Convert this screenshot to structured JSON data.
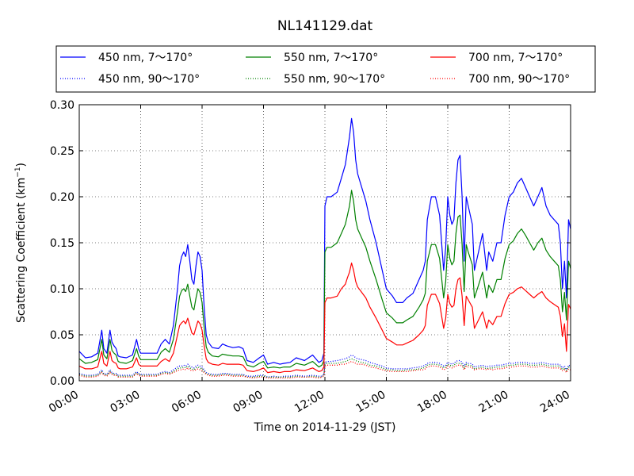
{
  "chart_data": {
    "type": "line",
    "title": "NL141129.dat",
    "xlabel": "Time on 2014-11-29 (JST)",
    "ylabel": "Scattering Coefficient (km",
    "ylabel_sup": "−1",
    "ylabel_tail": ")",
    "xlim": [
      0,
      24
    ],
    "ylim": [
      0,
      0.3
    ],
    "x_ticks": [
      0,
      3,
      6,
      9,
      12,
      15,
      18,
      21,
      24
    ],
    "x_tick_labels": [
      "00:00",
      "03:00",
      "06:00",
      "09:00",
      "12:00",
      "15:00",
      "18:00",
      "21:00",
      "24:00"
    ],
    "y_ticks": [
      0,
      0.05,
      0.1,
      0.15,
      0.2,
      0.25,
      0.3
    ],
    "y_tick_labels": [
      "0.00",
      "0.05",
      "0.10",
      "0.15",
      "0.20",
      "0.25",
      "0.30"
    ],
    "grid": true,
    "legend_position": "top",
    "x_hours": [
      0,
      0.3,
      0.6,
      0.9,
      1.1,
      1.2,
      1.35,
      1.5,
      1.6,
      1.7,
      1.8,
      1.9,
      2.0,
      2.3,
      2.6,
      2.8,
      2.9,
      3.0,
      3.2,
      3.5,
      3.8,
      4.0,
      4.2,
      4.4,
      4.6,
      4.8,
      4.9,
      5.0,
      5.1,
      5.2,
      5.3,
      5.4,
      5.5,
      5.6,
      5.7,
      5.8,
      5.9,
      6.0,
      6.1,
      6.2,
      6.3,
      6.5,
      6.8,
      7.0,
      7.2,
      7.5,
      7.8,
      8.0,
      8.2,
      8.5,
      8.8,
      9.0,
      9.2,
      9.5,
      9.8,
      10.0,
      10.3,
      10.6,
      11.0,
      11.4,
      11.7,
      11.85,
      11.95,
      12.0,
      12.1,
      12.3,
      12.6,
      12.8,
      13.0,
      13.1,
      13.2,
      13.3,
      13.4,
      13.5,
      13.6,
      13.8,
      14.0,
      14.2,
      14.5,
      14.8,
      15.0,
      15.3,
      15.5,
      15.8,
      16.0,
      16.3,
      16.6,
      16.8,
      16.9,
      17.0,
      17.2,
      17.4,
      17.6,
      17.8,
      17.9,
      18.0,
      18.1,
      18.2,
      18.3,
      18.4,
      18.5,
      18.6,
      18.7,
      18.8,
      18.9,
      19.0,
      19.1,
      19.2,
      19.3,
      19.5,
      19.7,
      19.9,
      20.0,
      20.2,
      20.4,
      20.6,
      20.8,
      21.0,
      21.2,
      21.4,
      21.6,
      21.8,
      22.0,
      22.2,
      22.4,
      22.6,
      22.8,
      23.0,
      23.2,
      23.4,
      23.5,
      23.6,
      23.7,
      23.8,
      23.9,
      24.0
    ],
    "series": [
      {
        "name": "450 nm, 7～170°",
        "color": "#0000ff",
        "style": "solid",
        "values": [
          0.032,
          0.025,
          0.026,
          0.03,
          0.055,
          0.035,
          0.03,
          0.055,
          0.042,
          0.038,
          0.035,
          0.027,
          0.026,
          0.025,
          0.028,
          0.045,
          0.035,
          0.03,
          0.03,
          0.03,
          0.03,
          0.04,
          0.045,
          0.04,
          0.06,
          0.1,
          0.125,
          0.135,
          0.14,
          0.135,
          0.148,
          0.13,
          0.11,
          0.105,
          0.125,
          0.14,
          0.135,
          0.12,
          0.08,
          0.05,
          0.042,
          0.036,
          0.035,
          0.04,
          0.038,
          0.036,
          0.037,
          0.035,
          0.022,
          0.02,
          0.025,
          0.028,
          0.018,
          0.02,
          0.018,
          0.019,
          0.02,
          0.025,
          0.022,
          0.028,
          0.02,
          0.022,
          0.03,
          0.19,
          0.2,
          0.2,
          0.205,
          0.22,
          0.235,
          0.25,
          0.265,
          0.285,
          0.27,
          0.24,
          0.225,
          0.21,
          0.195,
          0.175,
          0.15,
          0.12,
          0.1,
          0.092,
          0.085,
          0.085,
          0.09,
          0.095,
          0.11,
          0.12,
          0.13,
          0.175,
          0.2,
          0.2,
          0.18,
          0.12,
          0.145,
          0.2,
          0.18,
          0.17,
          0.175,
          0.215,
          0.24,
          0.245,
          0.2,
          0.13,
          0.2,
          0.19,
          0.18,
          0.17,
          0.12,
          0.14,
          0.16,
          0.12,
          0.14,
          0.13,
          0.15,
          0.15,
          0.18,
          0.2,
          0.205,
          0.215,
          0.22,
          0.21,
          0.2,
          0.19,
          0.2,
          0.21,
          0.19,
          0.18,
          0.175,
          0.17,
          0.15,
          0.1,
          0.13,
          0.09,
          0.175,
          0.165
        ]
      },
      {
        "name": "550 nm, 7～170°",
        "color": "#008000",
        "style": "solid",
        "values": [
          0.024,
          0.019,
          0.02,
          0.023,
          0.045,
          0.028,
          0.024,
          0.045,
          0.033,
          0.03,
          0.028,
          0.021,
          0.02,
          0.019,
          0.022,
          0.035,
          0.027,
          0.023,
          0.023,
          0.023,
          0.023,
          0.031,
          0.035,
          0.031,
          0.045,
          0.075,
          0.092,
          0.098,
          0.1,
          0.097,
          0.105,
          0.092,
          0.08,
          0.077,
          0.09,
          0.1,
          0.096,
          0.085,
          0.058,
          0.037,
          0.031,
          0.027,
          0.026,
          0.029,
          0.028,
          0.027,
          0.027,
          0.026,
          0.017,
          0.015,
          0.019,
          0.021,
          0.014,
          0.015,
          0.014,
          0.015,
          0.015,
          0.019,
          0.017,
          0.021,
          0.015,
          0.017,
          0.022,
          0.14,
          0.145,
          0.145,
          0.15,
          0.16,
          0.17,
          0.18,
          0.19,
          0.207,
          0.195,
          0.175,
          0.165,
          0.155,
          0.145,
          0.13,
          0.11,
          0.088,
          0.074,
          0.068,
          0.063,
          0.063,
          0.066,
          0.07,
          0.08,
          0.088,
          0.095,
          0.13,
          0.148,
          0.148,
          0.133,
          0.09,
          0.108,
          0.148,
          0.133,
          0.126,
          0.13,
          0.16,
          0.178,
          0.18,
          0.148,
          0.097,
          0.148,
          0.14,
          0.133,
          0.126,
          0.09,
          0.104,
          0.118,
          0.09,
          0.104,
          0.096,
          0.11,
          0.11,
          0.133,
          0.148,
          0.152,
          0.16,
          0.165,
          0.158,
          0.15,
          0.142,
          0.15,
          0.155,
          0.142,
          0.135,
          0.13,
          0.125,
          0.11,
          0.075,
          0.096,
          0.066,
          0.13,
          0.122
        ]
      },
      {
        "name": "700 nm, 7～170°",
        "color": "#ff0000",
        "style": "solid",
        "values": [
          0.016,
          0.013,
          0.013,
          0.015,
          0.032,
          0.019,
          0.016,
          0.032,
          0.022,
          0.02,
          0.019,
          0.014,
          0.013,
          0.013,
          0.015,
          0.025,
          0.018,
          0.016,
          0.016,
          0.016,
          0.016,
          0.021,
          0.024,
          0.021,
          0.03,
          0.05,
          0.06,
          0.063,
          0.065,
          0.062,
          0.068,
          0.06,
          0.052,
          0.05,
          0.058,
          0.065,
          0.062,
          0.055,
          0.038,
          0.024,
          0.02,
          0.018,
          0.017,
          0.019,
          0.018,
          0.018,
          0.018,
          0.017,
          0.011,
          0.01,
          0.012,
          0.014,
          0.009,
          0.01,
          0.009,
          0.01,
          0.01,
          0.012,
          0.011,
          0.014,
          0.01,
          0.011,
          0.015,
          0.085,
          0.09,
          0.09,
          0.092,
          0.1,
          0.105,
          0.112,
          0.118,
          0.128,
          0.12,
          0.108,
          0.102,
          0.096,
          0.09,
          0.08,
          0.068,
          0.055,
          0.046,
          0.042,
          0.039,
          0.039,
          0.041,
          0.044,
          0.05,
          0.055,
          0.06,
          0.082,
          0.094,
          0.094,
          0.084,
          0.057,
          0.068,
          0.094,
          0.084,
          0.08,
          0.082,
          0.1,
          0.11,
          0.112,
          0.092,
          0.06,
          0.092,
          0.088,
          0.084,
          0.08,
          0.057,
          0.066,
          0.075,
          0.057,
          0.066,
          0.061,
          0.07,
          0.07,
          0.084,
          0.094,
          0.096,
          0.1,
          0.102,
          0.098,
          0.094,
          0.09,
          0.094,
          0.097,
          0.09,
          0.086,
          0.083,
          0.08,
          0.07,
          0.048,
          0.062,
          0.032,
          0.083,
          0.078
        ]
      },
      {
        "name": "450 nm, 90～170°",
        "color": "#0000ff",
        "style": "dotted",
        "values": [
          0.008,
          0.006,
          0.006,
          0.007,
          0.012,
          0.008,
          0.007,
          0.012,
          0.009,
          0.008,
          0.008,
          0.006,
          0.006,
          0.006,
          0.006,
          0.01,
          0.008,
          0.007,
          0.007,
          0.007,
          0.007,
          0.009,
          0.01,
          0.009,
          0.012,
          0.015,
          0.016,
          0.016,
          0.017,
          0.016,
          0.018,
          0.016,
          0.015,
          0.014,
          0.016,
          0.017,
          0.016,
          0.015,
          0.012,
          0.009,
          0.008,
          0.007,
          0.007,
          0.008,
          0.008,
          0.007,
          0.007,
          0.007,
          0.005,
          0.005,
          0.006,
          0.006,
          0.004,
          0.005,
          0.004,
          0.005,
          0.005,
          0.006,
          0.005,
          0.006,
          0.005,
          0.005,
          0.007,
          0.02,
          0.021,
          0.021,
          0.022,
          0.023,
          0.024,
          0.025,
          0.026,
          0.028,
          0.027,
          0.025,
          0.024,
          0.023,
          0.022,
          0.02,
          0.018,
          0.016,
          0.014,
          0.013,
          0.013,
          0.013,
          0.013,
          0.014,
          0.015,
          0.016,
          0.017,
          0.019,
          0.02,
          0.02,
          0.019,
          0.016,
          0.017,
          0.02,
          0.019,
          0.018,
          0.019,
          0.021,
          0.022,
          0.022,
          0.02,
          0.016,
          0.02,
          0.019,
          0.019,
          0.018,
          0.015,
          0.016,
          0.017,
          0.015,
          0.016,
          0.016,
          0.017,
          0.017,
          0.018,
          0.019,
          0.019,
          0.02,
          0.02,
          0.02,
          0.019,
          0.019,
          0.019,
          0.02,
          0.019,
          0.018,
          0.018,
          0.018,
          0.017,
          0.014,
          0.016,
          0.012,
          0.017,
          0.016
        ]
      },
      {
        "name": "550 nm, 90～170°",
        "color": "#008000",
        "style": "dotted",
        "values": [
          0.007,
          0.005,
          0.005,
          0.006,
          0.01,
          0.007,
          0.006,
          0.01,
          0.008,
          0.007,
          0.007,
          0.005,
          0.005,
          0.005,
          0.005,
          0.009,
          0.007,
          0.006,
          0.006,
          0.006,
          0.006,
          0.008,
          0.009,
          0.008,
          0.01,
          0.013,
          0.014,
          0.014,
          0.015,
          0.014,
          0.016,
          0.014,
          0.013,
          0.012,
          0.014,
          0.015,
          0.014,
          0.013,
          0.01,
          0.008,
          0.007,
          0.006,
          0.006,
          0.007,
          0.007,
          0.006,
          0.006,
          0.006,
          0.004,
          0.004,
          0.005,
          0.005,
          0.004,
          0.004,
          0.004,
          0.004,
          0.004,
          0.005,
          0.004,
          0.005,
          0.004,
          0.004,
          0.006,
          0.018,
          0.019,
          0.019,
          0.019,
          0.02,
          0.021,
          0.022,
          0.023,
          0.024,
          0.023,
          0.022,
          0.021,
          0.02,
          0.019,
          0.017,
          0.016,
          0.014,
          0.012,
          0.012,
          0.011,
          0.011,
          0.012,
          0.012,
          0.013,
          0.014,
          0.015,
          0.017,
          0.018,
          0.018,
          0.017,
          0.014,
          0.015,
          0.018,
          0.017,
          0.016,
          0.017,
          0.019,
          0.019,
          0.019,
          0.018,
          0.014,
          0.018,
          0.017,
          0.017,
          0.016,
          0.013,
          0.014,
          0.015,
          0.013,
          0.014,
          0.014,
          0.015,
          0.015,
          0.016,
          0.017,
          0.017,
          0.018,
          0.018,
          0.018,
          0.017,
          0.017,
          0.017,
          0.018,
          0.017,
          0.016,
          0.016,
          0.016,
          0.015,
          0.012,
          0.014,
          0.011,
          0.015,
          0.014
        ]
      },
      {
        "name": "700 nm, 90～170°",
        "color": "#ff0000",
        "style": "dotted",
        "values": [
          0.006,
          0.004,
          0.004,
          0.005,
          0.009,
          0.006,
          0.005,
          0.009,
          0.007,
          0.006,
          0.006,
          0.004,
          0.004,
          0.004,
          0.004,
          0.008,
          0.006,
          0.005,
          0.005,
          0.005,
          0.005,
          0.007,
          0.008,
          0.007,
          0.009,
          0.011,
          0.012,
          0.012,
          0.013,
          0.012,
          0.014,
          0.012,
          0.011,
          0.011,
          0.012,
          0.013,
          0.012,
          0.011,
          0.009,
          0.007,
          0.006,
          0.005,
          0.005,
          0.006,
          0.006,
          0.005,
          0.005,
          0.005,
          0.004,
          0.003,
          0.004,
          0.004,
          0.003,
          0.003,
          0.003,
          0.003,
          0.003,
          0.004,
          0.004,
          0.004,
          0.003,
          0.004,
          0.005,
          0.016,
          0.017,
          0.017,
          0.017,
          0.018,
          0.018,
          0.019,
          0.02,
          0.021,
          0.02,
          0.019,
          0.018,
          0.018,
          0.017,
          0.015,
          0.014,
          0.012,
          0.011,
          0.01,
          0.01,
          0.01,
          0.01,
          0.011,
          0.012,
          0.012,
          0.013,
          0.015,
          0.016,
          0.016,
          0.015,
          0.012,
          0.013,
          0.016,
          0.015,
          0.014,
          0.015,
          0.016,
          0.017,
          0.017,
          0.016,
          0.012,
          0.016,
          0.015,
          0.015,
          0.014,
          0.012,
          0.013,
          0.013,
          0.012,
          0.013,
          0.012,
          0.013,
          0.013,
          0.014,
          0.015,
          0.015,
          0.016,
          0.016,
          0.016,
          0.015,
          0.015,
          0.015,
          0.016,
          0.015,
          0.014,
          0.014,
          0.014,
          0.013,
          0.011,
          0.012,
          0.009,
          0.013,
          0.012
        ]
      }
    ]
  }
}
